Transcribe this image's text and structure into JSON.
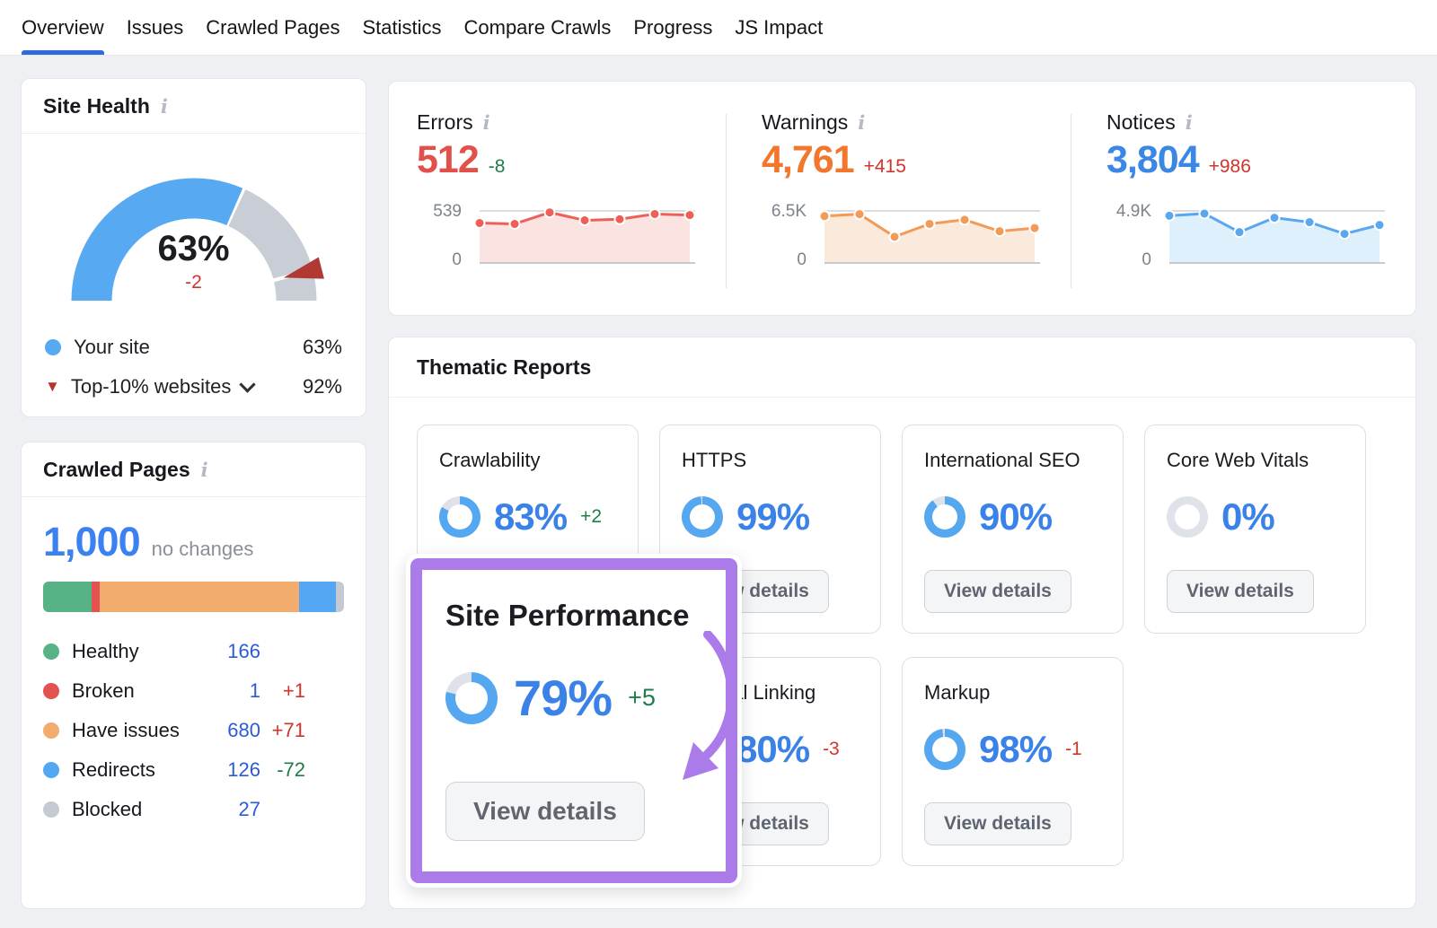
{
  "nav": {
    "tabs": [
      {
        "label": "Overview",
        "active": true
      },
      {
        "label": "Issues",
        "active": false
      },
      {
        "label": "Crawled Pages",
        "active": false
      },
      {
        "label": "Statistics",
        "active": false
      },
      {
        "label": "Compare Crawls",
        "active": false
      },
      {
        "label": "Progress",
        "active": false
      },
      {
        "label": "JS Impact",
        "active": false
      }
    ],
    "active_color": "#2e6bd9"
  },
  "site_health": {
    "title": "Site Health",
    "score_label": "63%",
    "score_pct": 63,
    "delta": "-2",
    "delta_color": "#d3332b",
    "benchmark_pct": 92,
    "gauge_colors": {
      "your_site": "#57a9f2",
      "remainder": "#c9ced6",
      "marker": "#b03a33"
    },
    "legend": [
      {
        "label": "Your site",
        "value": "63%",
        "marker_color": "#57a9f2"
      },
      {
        "label": "Top-10% websites",
        "value": "92%",
        "marker_color": "#b9342b"
      }
    ]
  },
  "overview_stats": {
    "items": [
      {
        "label": "Errors",
        "value": "512",
        "delta": "-8",
        "value_color": "#e2504a",
        "delta_color": "#1e7d49",
        "line_color": "#ed5f57",
        "fill_color": "#fbe3e1",
        "axis_max_label": "539",
        "axis_min_label": "0",
        "axis_max": 539,
        "points": [
          414,
          404,
          523,
          442,
          453,
          507,
          496
        ]
      },
      {
        "label": "Warnings",
        "value": "4,761",
        "delta": "+415",
        "value_color": "#f2762b",
        "delta_color": "#d3332b",
        "line_color": "#f29a56",
        "fill_color": "#faeadb",
        "axis_max_label": "6.5K",
        "axis_min_label": "0",
        "axis_max": 6500,
        "points": [
          5850,
          6100,
          3270,
          4880,
          5400,
          3960,
          4360
        ]
      },
      {
        "label": "Notices",
        "value": "3,804",
        "delta": "+986",
        "value_color": "#3b87e5",
        "delta_color": "#d3332b",
        "line_color": "#5aa7f0",
        "fill_color": "#def0fb",
        "axis_max_label": "4.9K",
        "axis_min_label": "0",
        "axis_max": 4900,
        "points": [
          4450,
          4650,
          2900,
          4260,
          3840,
          2740,
          3580
        ]
      }
    ]
  },
  "thematic": {
    "title": "Thematic Reports",
    "view_details_label": "View details",
    "ring_color": "#55a8f0",
    "track_color": "#dfe2e8",
    "score_color": "#3b82e8",
    "cards": [
      {
        "title": "Crawlability",
        "score": "83%",
        "pct": 83,
        "delta": "+2",
        "delta_color": "#1e7d49"
      },
      {
        "title": "HTTPS",
        "score": "99%",
        "pct": 99,
        "delta": "",
        "delta_color": ""
      },
      {
        "title": "International SEO",
        "score": "90%",
        "pct": 90,
        "delta": "",
        "delta_color": ""
      },
      {
        "title": "Core Web Vitals",
        "score": "0%",
        "pct": 0,
        "delta": "",
        "delta_color": ""
      },
      {
        "title": "Internal Linking",
        "score": "80%",
        "pct": 80,
        "delta": "-3",
        "delta_color": "#d3332b"
      },
      {
        "title": "Markup",
        "score": "98%",
        "pct": 98,
        "delta": "-1",
        "delta_color": "#d3332b"
      }
    ]
  },
  "crawled_pages": {
    "title": "Crawled Pages",
    "total": "1,000",
    "total_note": "no changes",
    "rows": [
      {
        "label": "Healthy",
        "value": 166,
        "value_label": "166",
        "delta": "",
        "delta_color": "",
        "color": "#57b385"
      },
      {
        "label": "Broken",
        "value": 1,
        "value_label": "1",
        "delta": "+1",
        "delta_color": "#d3332b",
        "color": "#e3524f"
      },
      {
        "label": "Have issues",
        "value": 680,
        "value_label": "680",
        "delta": "+71",
        "delta_color": "#d3332b",
        "color": "#f2ac6e"
      },
      {
        "label": "Redirects",
        "value": 126,
        "value_label": "126",
        "delta": "-72",
        "delta_color": "#1e7d49",
        "color": "#54a8f3"
      },
      {
        "label": "Blocked",
        "value": 27,
        "value_label": "27",
        "delta": "",
        "delta_color": "",
        "color": "#c5cad2"
      }
    ]
  },
  "highlight": {
    "title": "Site Performance",
    "score": "79%",
    "pct": 79,
    "delta": "+5",
    "delta_color": "#1e7d49",
    "button_label": "View details",
    "accent_color": "#ab7ce9"
  }
}
